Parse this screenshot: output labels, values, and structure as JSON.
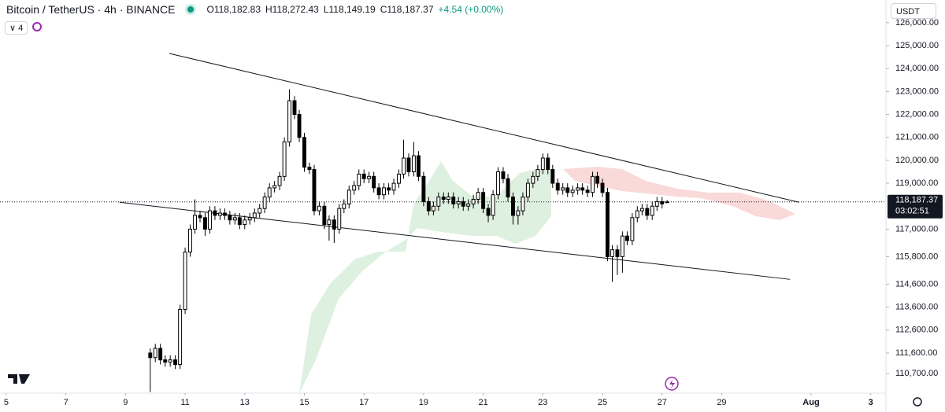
{
  "header": {
    "symbol": "Bitcoin / TetherUS · 4h · BINANCE",
    "open": "O118,182.83",
    "high": "H118,272.43",
    "low": "L118,149.19",
    "close": "C118,187.37",
    "change": "+4.54 (+0.00%)",
    "indicators": "4",
    "currency": "USDT"
  },
  "chart_data": {
    "type": "candlestick",
    "x": [
      9.83,
      10,
      10.17,
      10.33,
      10.5,
      10.67,
      10.83,
      11,
      11.17,
      11.33,
      11.5,
      11.67,
      11.83,
      12,
      12.17,
      12.33,
      12.5,
      12.67,
      12.83,
      13,
      13.17,
      13.33,
      13.5,
      13.67,
      13.83,
      14,
      14.17,
      14.33,
      14.5,
      14.67,
      14.83,
      15,
      15.17,
      15.33,
      15.5,
      15.67,
      15.83,
      16,
      16.17,
      16.33,
      16.5,
      16.67,
      16.83,
      17,
      17.17,
      17.33,
      17.5,
      17.67,
      17.83,
      18,
      18.17,
      18.33,
      18.5,
      18.67,
      18.83,
      19,
      19.17,
      19.33,
      19.5,
      19.67,
      19.83,
      20,
      20.17,
      20.33,
      20.5,
      20.67,
      20.83,
      21,
      21.17,
      21.33,
      21.5,
      21.67,
      21.83,
      22,
      22.17,
      22.33,
      22.5,
      22.67,
      22.83,
      23,
      23.17,
      23.33,
      23.5,
      23.67,
      23.83,
      24,
      24.17,
      24.33,
      24.5,
      24.67,
      24.83,
      25,
      25.17,
      25.33,
      25.5,
      25.67,
      25.83,
      26,
      26.17,
      26.33,
      26.5,
      26.67,
      26.83,
      27,
      27.17
    ],
    "open": [
      111600,
      111400,
      111800,
      111300,
      111200,
      111300,
      111100,
      113500,
      116000,
      117000,
      117600,
      117500,
      117000,
      117800,
      117600,
      117700,
      117600,
      117400,
      117500,
      117200,
      117400,
      117500,
      117700,
      117900,
      118400,
      118800,
      118900,
      119300,
      120800,
      122600,
      122000,
      121000,
      119700,
      119600,
      117800,
      118000,
      117200,
      117400,
      117000,
      117900,
      118100,
      118700,
      118900,
      119400,
      119200,
      119300,
      118800,
      118500,
      118800,
      118700,
      119000,
      119400,
      120100,
      119500,
      120200,
      119300,
      118200,
      117800,
      118000,
      118400,
      118300,
      118400,
      118100,
      118200,
      118000,
      118100,
      118300,
      118600,
      117900,
      117600,
      118500,
      119500,
      119200,
      118400,
      117600,
      117800,
      118400,
      119000,
      119300,
      119600,
      120100,
      119600,
      119000,
      118700,
      118800,
      118600,
      118700,
      118800,
      118700,
      118600,
      119300,
      119000,
      118600,
      115800,
      116100,
      115800,
      116700,
      116500,
      117500,
      117800,
      117900,
      117600,
      118000,
      118200,
      118182.83
    ],
    "high": [
      111800,
      112000,
      112000,
      111500,
      111500,
      111500,
      113700,
      116200,
      117200,
      118300,
      117800,
      117700,
      118000,
      118000,
      117900,
      117900,
      117800,
      117700,
      117700,
      117600,
      117700,
      117900,
      118100,
      118600,
      119000,
      119100,
      119500,
      121000,
      123100,
      122800,
      122200,
      121200,
      119900,
      119800,
      118200,
      118200,
      117600,
      117600,
      118100,
      118300,
      118900,
      119100,
      119600,
      119600,
      119500,
      119500,
      119000,
      119000,
      119000,
      119200,
      119600,
      120900,
      120300,
      120800,
      120400,
      119500,
      118400,
      118200,
      118600,
      118600,
      118600,
      118600,
      118400,
      118400,
      118300,
      118500,
      118800,
      118800,
      118100,
      118700,
      119700,
      119700,
      119400,
      118600,
      118000,
      118600,
      119200,
      119500,
      119800,
      120300,
      120300,
      119800,
      119200,
      119000,
      119000,
      118900,
      119000,
      119000,
      118900,
      119500,
      119500,
      119200,
      118800,
      116300,
      116300,
      116900,
      116900,
      117700,
      118000,
      118100,
      118100,
      118200,
      118400,
      118400,
      118272.43
    ],
    "low": [
      109900,
      111200,
      111100,
      111000,
      111000,
      110900,
      110900,
      113300,
      115800,
      116800,
      117300,
      116700,
      116800,
      117400,
      117400,
      117400,
      117200,
      117200,
      117000,
      117000,
      117200,
      117300,
      117500,
      117700,
      118200,
      118600,
      118700,
      119100,
      120600,
      121800,
      120800,
      119500,
      119400,
      117600,
      117600,
      117000,
      116500,
      116400,
      116800,
      117700,
      117900,
      118500,
      118700,
      119000,
      119000,
      118600,
      118300,
      118300,
      118500,
      118500,
      118800,
      119200,
      119300,
      119300,
      119100,
      118000,
      117600,
      117600,
      117800,
      118100,
      118100,
      117900,
      117900,
      117800,
      117800,
      117900,
      118100,
      117700,
      117300,
      117400,
      118300,
      119000,
      118200,
      117200,
      117200,
      117600,
      118200,
      118800,
      119100,
      119400,
      119400,
      118800,
      118500,
      118500,
      118400,
      118400,
      118500,
      118500,
      118400,
      118400,
      118800,
      118400,
      115600,
      114700,
      115000,
      115100,
      116300,
      116300,
      117300,
      117600,
      117400,
      117400,
      117800,
      117900,
      118149.19
    ],
    "close": [
      111400,
      111800,
      111300,
      111200,
      111300,
      111100,
      113500,
      116000,
      117000,
      117600,
      117500,
      117000,
      117800,
      117600,
      117700,
      117600,
      117400,
      117500,
      117200,
      117400,
      117500,
      117700,
      117900,
      118400,
      118800,
      118900,
      119300,
      120800,
      122600,
      122000,
      121000,
      119700,
      119600,
      117800,
      118000,
      117200,
      117400,
      117000,
      117900,
      118100,
      118700,
      118900,
      119400,
      119200,
      119300,
      118800,
      118500,
      118800,
      118700,
      119000,
      119400,
      120100,
      119500,
      120200,
      119300,
      118200,
      117800,
      118000,
      118400,
      118300,
      118400,
      118100,
      118200,
      118000,
      118100,
      118300,
      118600,
      117900,
      117600,
      118500,
      119500,
      119200,
      118400,
      117600,
      117800,
      118400,
      119000,
      119300,
      119600,
      120100,
      119600,
      119000,
      118700,
      118800,
      118600,
      118700,
      118800,
      118700,
      118600,
      119300,
      119000,
      118600,
      115800,
      116100,
      115800,
      116700,
      116500,
      117500,
      117800,
      117900,
      117600,
      118000,
      118200,
      118100,
      118187.37
    ],
    "up_color": "#ffffff",
    "down_color": "#000000",
    "wick_color": "#000000",
    "trendlines": [
      [
        [
          10.47,
          124660
        ],
        [
          31.6,
          118170
        ]
      ],
      [
        [
          8.8,
          118170
        ],
        [
          31.29,
          114810
        ]
      ]
    ],
    "price_line": {
      "value": 118187.37,
      "label": "118,187.37"
    },
    "countdown": "03:02:51",
    "xlim": [
      4.79,
      34.51
    ],
    "ylim": [
      109850,
      126990
    ],
    "xticks": [
      5,
      7,
      9,
      11,
      13,
      15,
      17,
      19,
      21,
      23,
      25,
      27,
      29,
      {
        "value": 32,
        "label": "Aug"
      },
      {
        "value": 34,
        "label": "3"
      }
    ],
    "yticks": [
      {
        "value": 126000,
        "label": "126,000.00"
      },
      {
        "value": 125000,
        "label": "125,000.00"
      },
      {
        "value": 124000,
        "label": "124,000.00"
      },
      {
        "value": 123000,
        "label": "123,000.00"
      },
      {
        "value": 122000,
        "label": "122,000.00"
      },
      {
        "value": 121000,
        "label": "121,000.00"
      },
      {
        "value": 120000,
        "label": "120,000.00"
      },
      {
        "value": 119000,
        "label": "119,000.00"
      },
      {
        "value": 117000,
        "label": "117,000.00"
      },
      {
        "value": 115800,
        "label": "115,800.00"
      },
      {
        "value": 114600,
        "label": "114,600.00"
      },
      {
        "value": 113600,
        "label": "113,600.00"
      },
      {
        "value": 112600,
        "label": "112,600.00"
      },
      {
        "value": 111600,
        "label": "111,600.00"
      },
      {
        "value": 110700,
        "label": "110,700.00"
      }
    ],
    "grid": false
  }
}
